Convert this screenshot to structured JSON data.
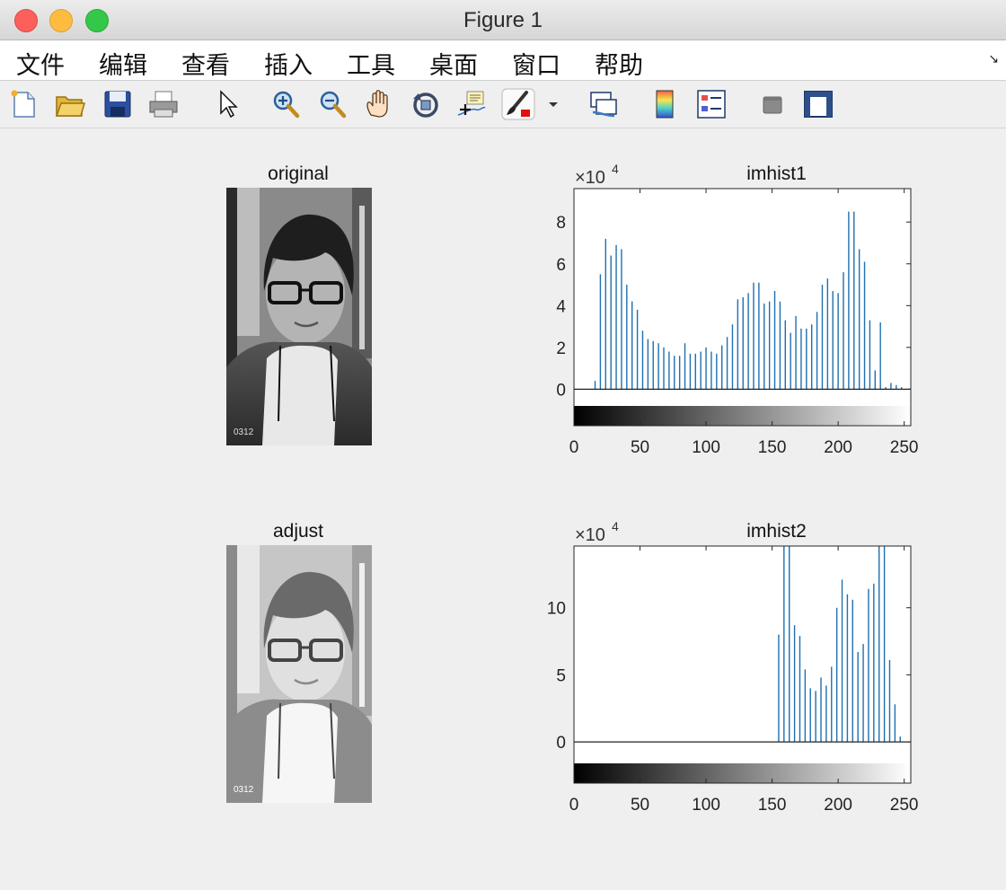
{
  "window": {
    "title": "Figure 1"
  },
  "menu": [
    "文件",
    "编辑",
    "查看",
    "插入",
    "工具",
    "桌面",
    "窗口",
    "帮助"
  ],
  "toolbar_icons": [
    "new-figure-icon",
    "open-file-icon",
    "save-icon",
    "print-icon",
    "pointer-icon",
    "zoom-in-icon",
    "zoom-out-icon",
    "pan-hand-icon",
    "rotate-3d-icon",
    "data-cursor-icon",
    "brush-icon",
    "dropdown-arrow-icon",
    "link-plot-icon",
    "colorbar-icon",
    "legend-icon",
    "hide-plot-tools-icon",
    "show-plot-tools-icon"
  ],
  "colors": {
    "bar": "#1f6fb0",
    "window_bg": "#efefef",
    "axes_bg": "#ffffff"
  },
  "panels": {
    "original": {
      "title": "original"
    },
    "adjust": {
      "title": "adjust"
    }
  },
  "chart_data": [
    {
      "type": "bar",
      "title": "imhist1",
      "exponent_label": "×10",
      "exponent_power": "4",
      "xlim": [
        0,
        255
      ],
      "ylim": [
        -0.8,
        9.6
      ],
      "xticks": [
        0,
        50,
        100,
        150,
        200,
        250
      ],
      "yticks": [
        0,
        2,
        4,
        6,
        8
      ],
      "colorbar": "grayscale 0-255",
      "x": [
        16,
        20,
        24,
        28,
        32,
        36,
        40,
        44,
        48,
        52,
        56,
        60,
        64,
        68,
        72,
        76,
        80,
        84,
        88,
        92,
        96,
        100,
        104,
        108,
        112,
        116,
        120,
        124,
        128,
        132,
        136,
        140,
        144,
        148,
        152,
        156,
        160,
        164,
        168,
        172,
        176,
        180,
        184,
        188,
        192,
        196,
        200,
        204,
        208,
        212,
        216,
        220,
        224,
        228,
        232,
        236,
        240,
        244,
        248
      ],
      "values": [
        0.4,
        5.5,
        7.2,
        6.4,
        6.9,
        6.7,
        5.0,
        4.2,
        3.8,
        2.8,
        2.4,
        2.3,
        2.2,
        2.0,
        1.8,
        1.6,
        1.6,
        2.2,
        1.7,
        1.7,
        1.8,
        2.0,
        1.8,
        1.7,
        2.1,
        2.5,
        3.1,
        4.3,
        4.4,
        4.6,
        5.1,
        5.1,
        4.1,
        4.2,
        4.7,
        4.2,
        3.3,
        2.7,
        3.5,
        2.9,
        2.9,
        3.1,
        3.7,
        5.0,
        5.3,
        4.7,
        4.6,
        5.6,
        8.5,
        8.5,
        6.7,
        6.1,
        3.3,
        0.9,
        3.2,
        0.1,
        0.3,
        0.2,
        0.1
      ]
    },
    {
      "type": "bar",
      "title": "imhist2",
      "exponent_label": "×10",
      "exponent_power": "4",
      "xlim": [
        0,
        255
      ],
      "ylim": [
        -1.6,
        14.6
      ],
      "xticks": [
        0,
        50,
        100,
        150,
        200,
        250
      ],
      "yticks": [
        0,
        5,
        10
      ],
      "colorbar": "grayscale 0-255",
      "x": [
        155,
        159,
        163,
        167,
        171,
        175,
        179,
        183,
        187,
        191,
        195,
        199,
        203,
        207,
        211,
        215,
        219,
        223,
        227,
        231,
        235,
        239,
        243,
        247
      ],
      "values": [
        8.0,
        14.6,
        14.6,
        8.7,
        7.9,
        5.4,
        4.0,
        3.8,
        4.8,
        4.2,
        5.6,
        10.0,
        12.1,
        11.0,
        10.6,
        6.7,
        7.3,
        11.4,
        11.8,
        14.6,
        14.6,
        6.1,
        2.8,
        0.4
      ]
    }
  ]
}
